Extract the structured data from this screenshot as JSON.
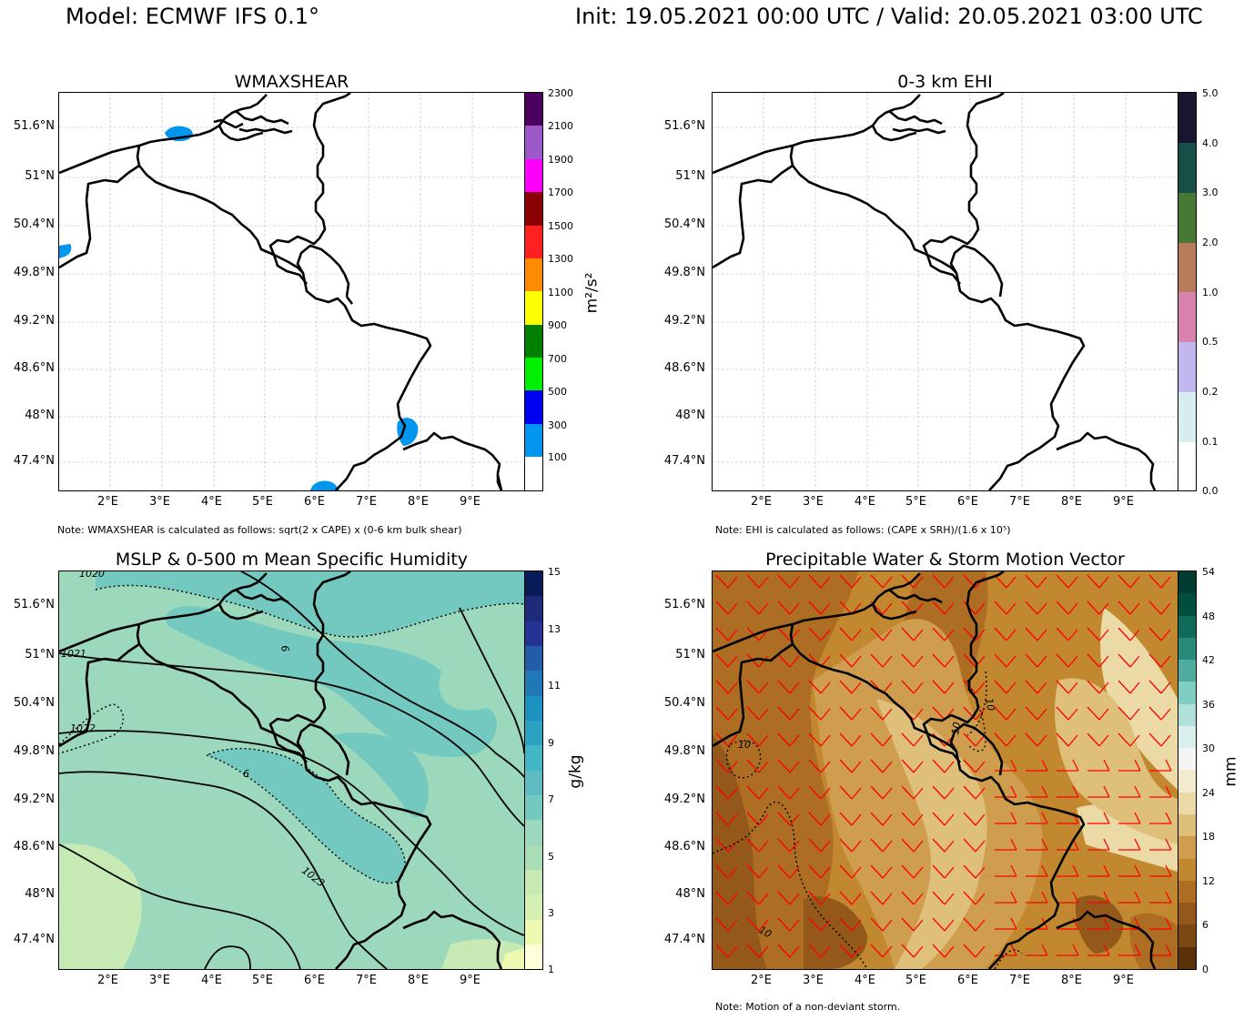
{
  "header": {
    "model": "Model: ECMWF IFS 0.1°",
    "init_valid": "Init: 19.05.2021 00:00 UTC / Valid: 20.05.2021 03:00 UTC"
  },
  "axes": {
    "lat_labels": [
      "51.6°N",
      "51°N",
      "50.4°N",
      "49.8°N",
      "49.2°N",
      "48.6°N",
      "48°N",
      "47.4°N"
    ],
    "lon_labels": [
      "2°E",
      "3°E",
      "4°E",
      "5°E",
      "6°E",
      "7°E",
      "8°E",
      "9°E"
    ]
  },
  "panels": [
    {
      "id": "wmaxshear",
      "title": "WMAXSHEAR",
      "note": "Note: WMAXSHEAR is calculated as follows: sqrt(2 x CAPE) x (0-6 km bulk shear)",
      "colorbar": {
        "unit": "m²/s²",
        "labels": [
          "100",
          "300",
          "500",
          "700",
          "900",
          "1100",
          "1300",
          "1500",
          "1700",
          "1900",
          "2100",
          "2300"
        ],
        "colors": [
          "#ffffff",
          "#0096f0",
          "#0000f0",
          "#00f000",
          "#008000",
          "#ffff00",
          "#ff8c00",
          "#ff2020",
          "#8b0000",
          "#ff00ff",
          "#9b59c8",
          "#4b0060"
        ]
      }
    },
    {
      "id": "ehi",
      "title": "0-3 km EHI",
      "note": "Note: EHI is calculated as follows: (CAPE x SRH)/(1.6 x 10⁵)",
      "colorbar": {
        "unit": "",
        "labels": [
          "0.0",
          "0.1",
          "0.2",
          "0.5",
          "1.0",
          "2.0",
          "3.0",
          "4.0",
          "5.0"
        ],
        "colors": [
          "#ffffff",
          "#d8eeee",
          "#c3b7ef",
          "#d982b0",
          "#b97c5a",
          "#467a34",
          "#174f48",
          "#1a1630"
        ]
      }
    },
    {
      "id": "mslp",
      "title": "MSLP & 0-500 m Mean Specific Humidity",
      "note": "",
      "contour_labels": [
        "1020",
        "1021",
        "1022",
        "1023",
        "6",
        "6"
      ],
      "colorbar": {
        "unit": "g/kg",
        "labels": [
          "1",
          "3",
          "5",
          "7",
          "9",
          "11",
          "13",
          "15"
        ],
        "colors": [
          "#ffffd9",
          "#edf8b1",
          "#d6efb3",
          "#c7e9b4",
          "#a8ddb5",
          "#9bd8bc",
          "#73c8c0",
          "#5fbdc2",
          "#41b6c4",
          "#2ca1c2",
          "#1d91c0",
          "#2079b4",
          "#225ea8",
          "#253494",
          "#1f2a7a",
          "#081d58"
        ]
      }
    },
    {
      "id": "pw",
      "title": "Precipitable Water & Storm Motion Vector",
      "note": "Note: Motion of a non-deviant storm.",
      "contour_labels": [
        "10",
        "10",
        "10",
        "10"
      ],
      "colorbar": {
        "unit": "mm",
        "labels": [
          "0",
          "6",
          "12",
          "18",
          "24",
          "30",
          "36",
          "42",
          "48",
          "54"
        ],
        "colors": [
          "#5a3008",
          "#7a4810",
          "#94591a",
          "#ad6d22",
          "#c2882f",
          "#cf9d4e",
          "#dfc07a",
          "#ebd9a6",
          "#f2ebd0",
          "#f5f5f5",
          "#d8efec",
          "#b0e0da",
          "#80cdc1",
          "#4fac9f",
          "#2a8a7a",
          "#0f6b5a",
          "#004f3c",
          "#003c30"
        ]
      }
    }
  ]
}
